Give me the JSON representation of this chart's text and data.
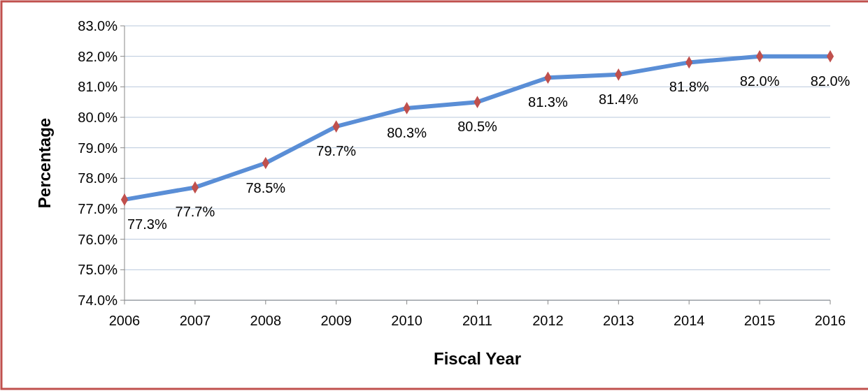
{
  "chart_data": {
    "type": "line",
    "xlabel": "Fiscal Year",
    "ylabel": "Percentage",
    "x": [
      2006,
      2007,
      2008,
      2009,
      2010,
      2011,
      2012,
      2013,
      2014,
      2015,
      2016
    ],
    "series": [
      {
        "color": "#5a8ed6",
        "values": [
          77.3,
          77.7,
          78.5,
          79.7,
          80.3,
          80.5,
          81.3,
          81.4,
          81.8,
          82.0,
          82.0
        ],
        "value_labels": [
          "77.3%",
          "77.7%",
          "78.5%",
          "79.7%",
          "80.3%",
          "80.5%",
          "81.3%",
          "81.4%",
          "81.8%",
          "82.0%",
          "82.0%"
        ]
      }
    ],
    "xlim": [
      2006,
      2016
    ],
    "xticks": [
      2006,
      2007,
      2008,
      2009,
      2010,
      2011,
      2012,
      2013,
      2014,
      2015,
      2016
    ],
    "ylim": [
      74,
      83
    ],
    "yticks": [
      {
        "value": 74,
        "label": "74.0%"
      },
      {
        "value": 75,
        "label": "75.0%"
      },
      {
        "value": 76,
        "label": "76.0%"
      },
      {
        "value": 77,
        "label": "77.0%"
      },
      {
        "value": 78,
        "label": "78.0%"
      },
      {
        "value": 79,
        "label": "79.0%"
      },
      {
        "value": 80,
        "label": "80.0%"
      },
      {
        "value": 81,
        "label": "81.0%"
      },
      {
        "value": 82,
        "label": "82.0%"
      },
      {
        "value": 83,
        "label": "83.0%"
      }
    ],
    "grid": "y",
    "marker": "diamond",
    "line_style": "solid"
  }
}
